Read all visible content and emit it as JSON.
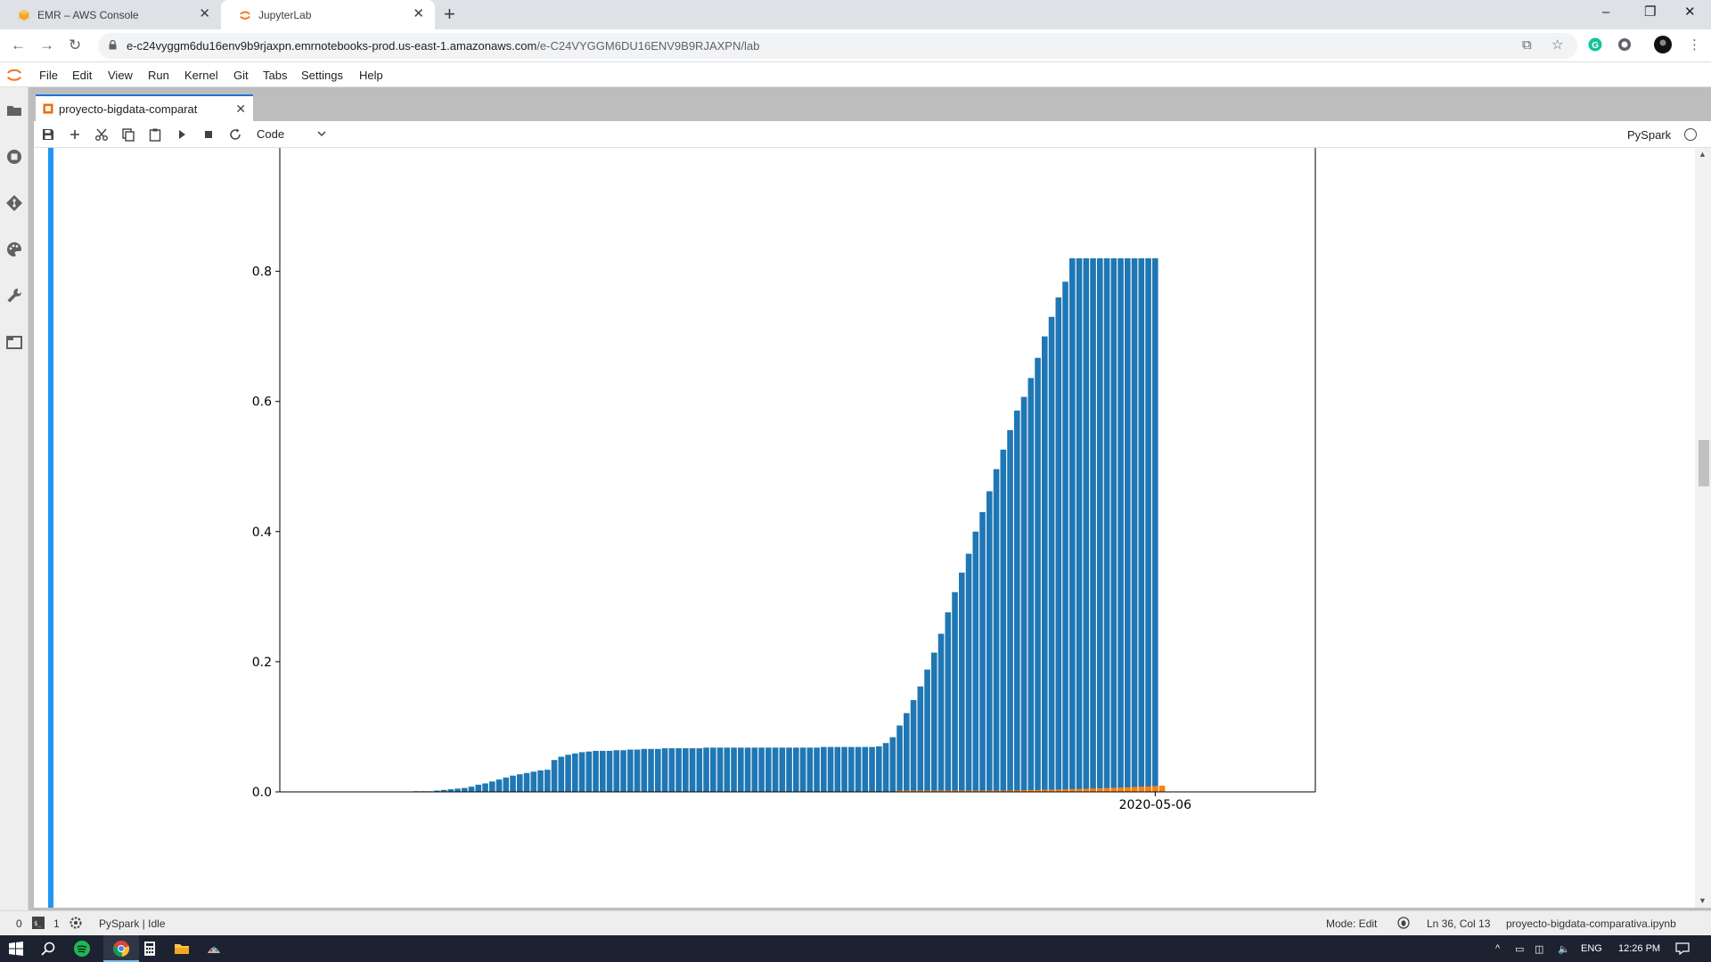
{
  "browser": {
    "tabs": [
      {
        "title": "EMR – AWS Console",
        "active": false
      },
      {
        "title": "JupyterLab",
        "active": true
      }
    ],
    "url_main": "e-c24vyggm6du16env9b9rjaxpn.emrnotebooks-prod.us-east-1.amazonaws.com",
    "url_path": "/e-C24VYGGM6DU16ENV9B9RJAXPN/lab"
  },
  "menu": [
    "File",
    "Edit",
    "View",
    "Run",
    "Kernel",
    "Git",
    "Tabs",
    "Settings",
    "Help"
  ],
  "notebook": {
    "tab_title": "proyecto-bigdata-comparat",
    "cell_type": "Code",
    "kernel": "PySpark"
  },
  "status": {
    "cells_count": "0",
    "terminals_count": "1",
    "kernel_status": "PySpark | Idle",
    "mode": "Mode: Edit",
    "position": "Ln 36, Col 13",
    "filename": "proyecto-bigdata-comparativa.ipynb"
  },
  "taskbar": {
    "lang": "ENG",
    "time": "12:26 PM"
  },
  "colors": {
    "series_main": "#1f77b4",
    "series_second": "#ff7f0e",
    "cell_active_bar": "#2196f3"
  },
  "chart_data": {
    "type": "bar",
    "yticks": [
      "0.0",
      "0.2",
      "0.4",
      "0.6",
      "0.8"
    ],
    "ylim": [
      0,
      0.82
    ],
    "x_tick_label": "2020-05-06",
    "grid": false,
    "series": [
      {
        "color": "#1f77b4",
        "values": [
          0,
          0,
          0,
          0,
          0,
          0,
          0,
          0,
          0,
          0.001,
          0.001,
          0.001,
          0.002,
          0.003,
          0.004,
          0.005,
          0.006,
          0.008,
          0.011,
          0.013,
          0.016,
          0.019,
          0.022,
          0.025,
          0.027,
          0.029,
          0.031,
          0.033,
          0.034,
          0.049,
          0.054,
          0.057,
          0.059,
          0.061,
          0.062,
          0.063,
          0.063,
          0.063,
          0.064,
          0.064,
          0.065,
          0.065,
          0.066,
          0.066,
          0.066,
          0.067,
          0.067,
          0.067,
          0.067,
          0.067,
          0.067,
          0.068,
          0.068,
          0.068,
          0.068,
          0.068,
          0.068,
          0.068,
          0.068,
          0.068,
          0.068,
          0.068,
          0.068,
          0.068,
          0.068,
          0.068,
          0.068,
          0.068,
          0.069,
          0.069,
          0.069,
          0.069,
          0.069,
          0.069,
          0.069,
          0.069,
          0.07,
          0.075,
          0.084,
          0.102,
          0.121,
          0.141,
          0.162,
          0.188,
          0.214,
          0.243,
          0.276,
          0.307,
          0.337,
          0.366,
          0.4,
          0.43,
          0.462,
          0.496,
          0.526,
          0.556,
          0.586,
          0.607,
          0.636,
          0.667,
          0.7,
          0.73,
          0.76,
          0.784,
          0.82,
          0.82,
          0.82,
          0.82,
          0.82,
          0.82,
          0.82,
          0.82,
          0.82,
          0.82,
          0.82,
          0.82,
          0.82
        ]
      },
      {
        "color": "#ff7f0e",
        "values": [
          0,
          0,
          0,
          0,
          0,
          0,
          0,
          0,
          0,
          0,
          0,
          0,
          0,
          0,
          0,
          0,
          0,
          0,
          0,
          0,
          0,
          0,
          0,
          0,
          0,
          0,
          0,
          0,
          0,
          0,
          0,
          0,
          0,
          0,
          0,
          0,
          0,
          0,
          0,
          0,
          0,
          0,
          0,
          0,
          0,
          0,
          0,
          0,
          0,
          0,
          0,
          0,
          0,
          0,
          0,
          0,
          0,
          0,
          0,
          0,
          0,
          0,
          0,
          0,
          0,
          0,
          0,
          0,
          0,
          0,
          0,
          0,
          0,
          0,
          0,
          0,
          0,
          0,
          0,
          0.0005,
          0.0006,
          0.0007,
          0.0008,
          0.0009,
          0.001,
          0.0011,
          0.0012,
          0.0013,
          0.0014,
          0.0015,
          0.0016,
          0.0017,
          0.0018,
          0.0019,
          0.002,
          0.0022,
          0.0024,
          0.0026,
          0.0028,
          0.003,
          0.0032,
          0.0034,
          0.0036,
          0.0039,
          0.0042,
          0.0045,
          0.0048,
          0.0051,
          0.0055,
          0.0059,
          0.0063,
          0.0067,
          0.0071,
          0.0075,
          0.008,
          0.0085,
          0.009,
          0.0095
        ]
      }
    ]
  }
}
